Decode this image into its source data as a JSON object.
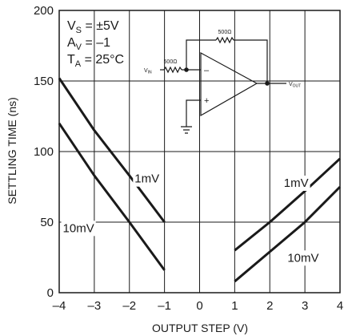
{
  "chart_data": {
    "type": "line",
    "xlabel": "OUTPUT STEP (V)",
    "ylabel": "SETTLING TIME (ns)",
    "xlim": [
      -4,
      4
    ],
    "ylim": [
      0,
      200
    ],
    "xticks": [
      "–4",
      "–3",
      "–2",
      "–1",
      "0",
      "1",
      "2",
      "3",
      "4"
    ],
    "yticks": [
      "0",
      "50",
      "100",
      "150",
      "200"
    ],
    "grid": true,
    "conditions": [
      {
        "main": "V",
        "sub": "S",
        "rest": " = ±5V"
      },
      {
        "main": "A",
        "sub": "V",
        "rest": " = –1"
      },
      {
        "main": "T",
        "sub": "A",
        "rest": " = 25°C"
      }
    ],
    "series": [
      {
        "name": "1mV",
        "x": [
          -4,
          -3,
          -2,
          -1
        ],
        "y": [
          152,
          115,
          83,
          50
        ]
      },
      {
        "name": "10mV",
        "x": [
          -4,
          -3,
          -2,
          -1
        ],
        "y": [
          120,
          83,
          50,
          16
        ]
      },
      {
        "name": "1mV",
        "x": [
          1,
          2,
          3,
          4
        ],
        "y": [
          30,
          50,
          72,
          95
        ]
      },
      {
        "name": "10mV",
        "x": [
          1,
          2,
          3,
          4
        ],
        "y": [
          8,
          29,
          50,
          75
        ]
      }
    ],
    "curve_labels": [
      {
        "text": "1mV",
        "x": -1.5,
        "y": 78
      },
      {
        "text": "10mV",
        "x": -3.45,
        "y": 43
      },
      {
        "text": "1mV",
        "x": 2.75,
        "y": 75
      },
      {
        "text": "10mV",
        "x": 2.95,
        "y": 22
      }
    ],
    "inset": {
      "r_feedback": "500Ω",
      "r_input": "500Ω",
      "input_label": {
        "main": "V",
        "sub": "IN"
      },
      "output_label": {
        "main": "V",
        "sub": "OUT"
      },
      "minus_sign": "–",
      "plus_sign": "+"
    }
  }
}
